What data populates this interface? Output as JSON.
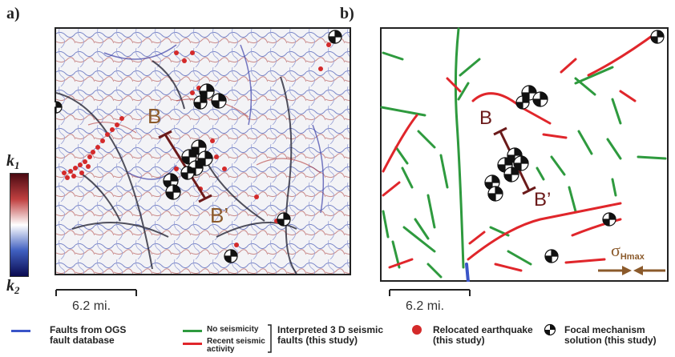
{
  "panels": {
    "a_label": "a)",
    "b_label": "b)"
  },
  "colorbar": {
    "top_label": "k",
    "top_sub": "1",
    "bottom_label": "k",
    "bottom_sub": "2"
  },
  "scalebars": {
    "a": "6.2 mi.",
    "b": "6.2 mi."
  },
  "section": {
    "a_start": "B",
    "a_end": "B’",
    "b_start": "B",
    "b_end": "B’"
  },
  "stress": {
    "label": "σ",
    "sub": "Hmax"
  },
  "legend": {
    "ogs_line1": "Faults from OGS",
    "ogs_line2": "fault database",
    "no_seismicity": "No seismicity",
    "recent_line1": "Recent seismic",
    "recent_line2": "activity",
    "interp_line1": "Interpreted 3 D seismic",
    "interp_line2": "faults (this study)",
    "reloc_line1": "Relocated earthquake",
    "reloc_line2": "(this study)",
    "focal_line1": "Focal mechanism",
    "focal_line2": "solution (this study)"
  },
  "colors": {
    "green_fault": "#2e9a3e",
    "red_fault": "#e0262b",
    "ogs_fault": "#3a55c8",
    "quake": "#d42a2a",
    "section_line": "#6b1a1a",
    "stress_arrow": "#8b5a2b"
  }
}
